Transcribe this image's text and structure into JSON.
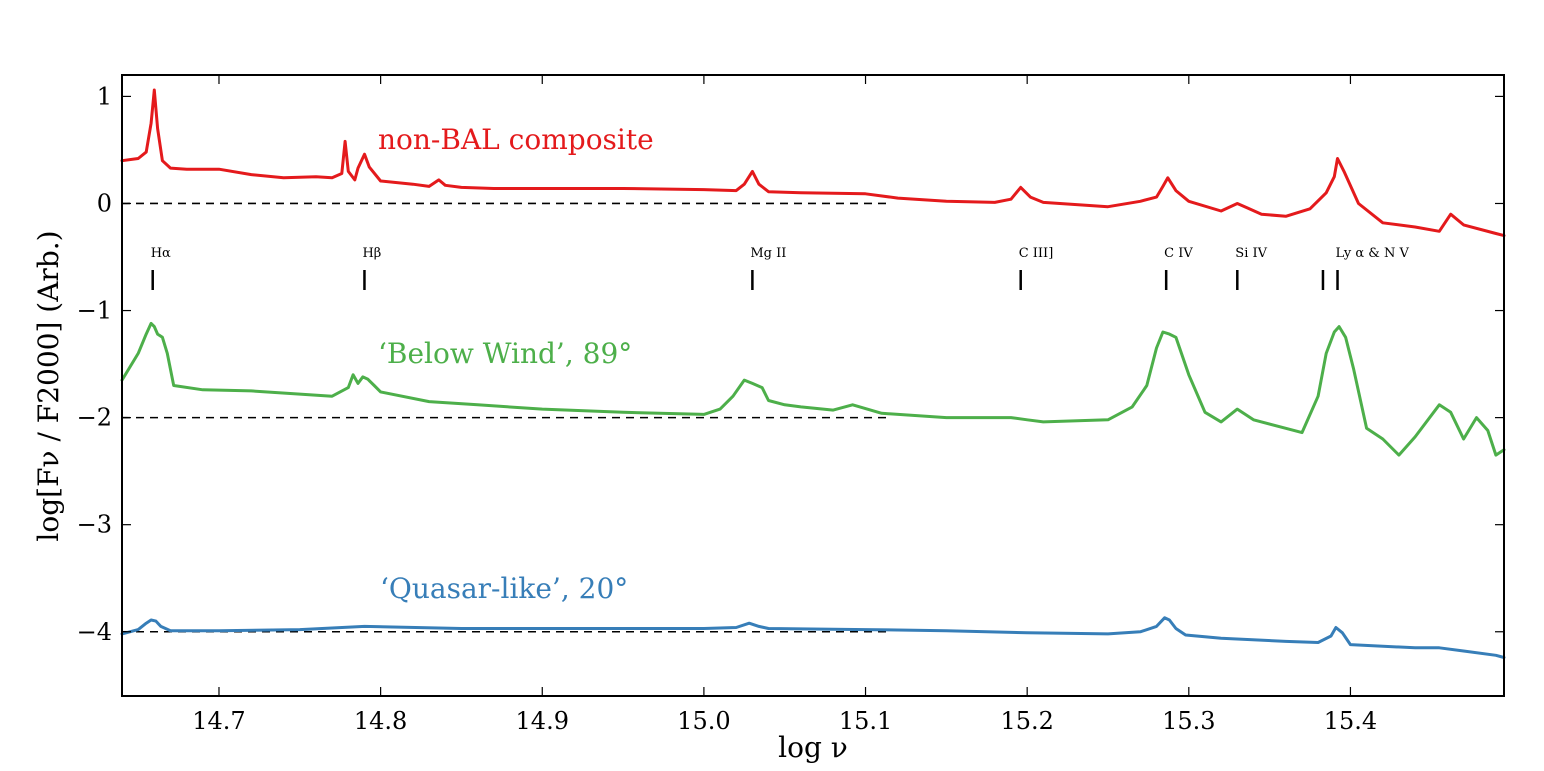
{
  "chart_data": {
    "type": "line",
    "title": "",
    "xlabel": "log ν",
    "ylabel": "log[Fν / F2000] (Arb.)",
    "xlim": [
      14.64,
      15.495
    ],
    "ylim": [
      -4.6,
      1.2
    ],
    "xticks": [
      14.7,
      14.8,
      14.9,
      15.0,
      15.1,
      15.2,
      15.3,
      15.4
    ],
    "xtick_labels": [
      "14.7",
      "14.8",
      "14.9",
      "15.0",
      "15.1",
      "15.2",
      "15.3",
      "15.4"
    ],
    "yticks": [
      1,
      0,
      -1,
      -2,
      -3,
      -4
    ],
    "ytick_labels": [
      "1",
      "0",
      "−1",
      "−2",
      "−3",
      "−4"
    ],
    "grid": false,
    "legend": "none",
    "reference_lines": [
      0,
      -2,
      -4
    ],
    "line_markers": [
      {
        "label": "Hα",
        "x": 14.659
      },
      {
        "label": "Hβ",
        "x": 14.79
      },
      {
        "label": "Mg II",
        "x": 15.03
      },
      {
        "label": "C III]",
        "x": 15.196
      },
      {
        "label": "C IV",
        "x": 15.286
      },
      {
        "label": "Si IV",
        "x": 15.33
      },
      {
        "label": "",
        "x": 15.383
      },
      {
        "label": "Ly α & N V",
        "x": 15.392
      }
    ],
    "series": [
      {
        "name": "non-BAL composite",
        "color": "#e41a1c",
        "x": [
          14.64,
          14.65,
          14.655,
          14.658,
          14.66,
          14.662,
          14.665,
          14.67,
          14.68,
          14.7,
          14.72,
          14.74,
          14.76,
          14.77,
          14.776,
          14.778,
          14.78,
          14.784,
          14.786,
          14.79,
          14.793,
          14.8,
          14.82,
          14.83,
          14.836,
          14.84,
          14.85,
          14.87,
          14.9,
          14.95,
          15.0,
          15.02,
          15.025,
          15.03,
          15.034,
          15.04,
          15.06,
          15.1,
          15.12,
          15.15,
          15.18,
          15.19,
          15.196,
          15.202,
          15.21,
          15.25,
          15.27,
          15.28,
          15.284,
          15.287,
          15.292,
          15.3,
          15.32,
          15.33,
          15.336,
          15.345,
          15.36,
          15.375,
          15.385,
          15.39,
          15.392,
          15.396,
          15.405,
          15.42,
          15.44,
          15.455,
          15.462,
          15.47,
          15.49,
          15.495
        ],
        "values": [
          0.4,
          0.42,
          0.48,
          0.75,
          1.06,
          0.7,
          0.4,
          0.33,
          0.32,
          0.32,
          0.27,
          0.24,
          0.25,
          0.24,
          0.28,
          0.58,
          0.3,
          0.22,
          0.33,
          0.46,
          0.34,
          0.21,
          0.18,
          0.16,
          0.22,
          0.17,
          0.15,
          0.14,
          0.14,
          0.14,
          0.13,
          0.12,
          0.18,
          0.3,
          0.18,
          0.11,
          0.1,
          0.09,
          0.05,
          0.02,
          0.01,
          0.04,
          0.15,
          0.06,
          0.01,
          -0.03,
          0.02,
          0.06,
          0.16,
          0.24,
          0.12,
          0.02,
          -0.07,
          0.0,
          -0.04,
          -0.1,
          -0.12,
          -0.05,
          0.1,
          0.25,
          0.42,
          0.3,
          0.0,
          -0.18,
          -0.22,
          -0.26,
          -0.1,
          -0.2,
          -0.28,
          -0.3
        ]
      },
      {
        "name": "‘Below Wind’, 89°",
        "color": "#4daf4a",
        "x": [
          14.64,
          14.65,
          14.655,
          14.658,
          14.66,
          14.662,
          14.665,
          14.668,
          14.672,
          14.69,
          14.72,
          14.75,
          14.77,
          14.78,
          14.783,
          14.786,
          14.789,
          14.792,
          14.796,
          14.8,
          14.83,
          14.86,
          14.9,
          14.95,
          15.0,
          15.01,
          15.018,
          15.025,
          15.03,
          15.036,
          15.04,
          15.05,
          15.06,
          15.08,
          15.092,
          15.11,
          15.15,
          15.19,
          15.2,
          15.21,
          15.25,
          15.265,
          15.274,
          15.28,
          15.284,
          15.288,
          15.292,
          15.3,
          15.31,
          15.32,
          15.33,
          15.34,
          15.36,
          15.37,
          15.38,
          15.385,
          15.39,
          15.393,
          15.397,
          15.402,
          15.41,
          15.42,
          15.43,
          15.44,
          15.455,
          15.462,
          15.47,
          15.478,
          15.485,
          15.49,
          15.495
        ],
        "values": [
          -1.65,
          -1.4,
          -1.22,
          -1.12,
          -1.15,
          -1.22,
          -1.25,
          -1.4,
          -1.7,
          -1.74,
          -1.75,
          -1.78,
          -1.8,
          -1.72,
          -1.6,
          -1.68,
          -1.62,
          -1.64,
          -1.7,
          -1.76,
          -1.85,
          -1.88,
          -1.92,
          -1.95,
          -1.97,
          -1.92,
          -1.8,
          -1.65,
          -1.68,
          -1.72,
          -1.84,
          -1.88,
          -1.9,
          -1.93,
          -1.88,
          -1.96,
          -2.0,
          -2.0,
          -2.02,
          -2.04,
          -2.02,
          -1.9,
          -1.7,
          -1.35,
          -1.2,
          -1.22,
          -1.25,
          -1.6,
          -1.95,
          -2.04,
          -1.92,
          -2.02,
          -2.1,
          -2.14,
          -1.8,
          -1.4,
          -1.2,
          -1.15,
          -1.25,
          -1.55,
          -2.1,
          -2.2,
          -2.35,
          -2.18,
          -1.88,
          -1.95,
          -2.2,
          -2.0,
          -2.12,
          -2.35,
          -2.3
        ]
      },
      {
        "name": "‘Quasar-like’, 20°",
        "color": "#377eb8",
        "x": [
          14.64,
          14.65,
          14.655,
          14.658,
          14.661,
          14.664,
          14.67,
          14.7,
          14.75,
          14.79,
          14.85,
          14.95,
          15.0,
          15.02,
          15.028,
          15.034,
          15.04,
          15.1,
          15.15,
          15.2,
          15.25,
          15.27,
          15.28,
          15.285,
          15.288,
          15.292,
          15.298,
          15.32,
          15.36,
          15.38,
          15.388,
          15.391,
          15.395,
          15.4,
          15.44,
          15.455,
          15.47,
          15.49,
          15.495
        ],
        "values": [
          -4.02,
          -3.98,
          -3.92,
          -3.89,
          -3.9,
          -3.95,
          -3.99,
          -3.99,
          -3.98,
          -3.95,
          -3.97,
          -3.97,
          -3.97,
          -3.96,
          -3.92,
          -3.95,
          -3.97,
          -3.98,
          -3.99,
          -4.01,
          -4.02,
          -4.0,
          -3.95,
          -3.87,
          -3.89,
          -3.97,
          -4.03,
          -4.06,
          -4.09,
          -4.1,
          -4.04,
          -3.96,
          -4.01,
          -4.12,
          -4.15,
          -4.15,
          -4.18,
          -4.22,
          -4.24
        ]
      }
    ]
  }
}
